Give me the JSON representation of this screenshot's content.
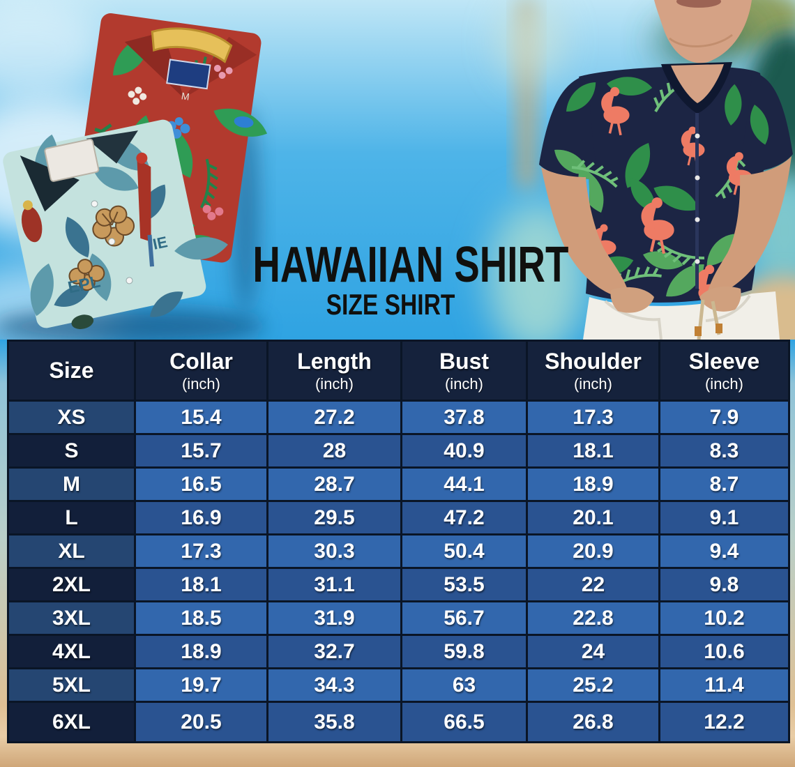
{
  "hero": {
    "title": "HAWAIIAN SHIRT",
    "subtitle": "SIZE SHIRT",
    "left_image": "two-folded-hawaiian-shirts",
    "right_image": "man-wearing-flamingo-hawaiian-shirt"
  },
  "chart_data": {
    "type": "table",
    "title": "HAWAIIAN SHIRT",
    "subtitle": "SIZE SHIRT",
    "columns": [
      {
        "label": "Size",
        "unit": ""
      },
      {
        "label": "Collar",
        "unit": "(inch)"
      },
      {
        "label": "Length",
        "unit": "(inch)"
      },
      {
        "label": "Bust",
        "unit": "(inch)"
      },
      {
        "label": "Shoulder",
        "unit": "(inch)"
      },
      {
        "label": "Sleeve",
        "unit": "(inch)"
      }
    ],
    "rows": [
      {
        "size": "XS",
        "values": [
          15.4,
          27.2,
          37.8,
          17.3,
          7.9
        ]
      },
      {
        "size": "S",
        "values": [
          15.7,
          28,
          40.9,
          18.1,
          8.3
        ]
      },
      {
        "size": "M",
        "values": [
          16.5,
          28.7,
          44.1,
          18.9,
          8.7
        ]
      },
      {
        "size": "L",
        "values": [
          16.9,
          29.5,
          47.2,
          20.1,
          9.1
        ]
      },
      {
        "size": "XL",
        "values": [
          17.3,
          30.3,
          50.4,
          20.9,
          9.4
        ]
      },
      {
        "size": "2XL",
        "values": [
          18.1,
          31.1,
          53.5,
          22,
          9.8
        ]
      },
      {
        "size": "3XL",
        "values": [
          18.5,
          31.9,
          56.7,
          22.8,
          10.2
        ]
      },
      {
        "size": "4XL",
        "values": [
          18.9,
          32.7,
          59.8,
          24,
          10.6
        ]
      },
      {
        "size": "5XL",
        "values": [
          19.7,
          34.3,
          63,
          25.2,
          11.4
        ]
      },
      {
        "size": "6XL",
        "values": [
          20.5,
          35.8,
          66.5,
          26.8,
          12.2
        ]
      }
    ]
  },
  "colors": {
    "header_bg": "#15223c",
    "row_odd_value_bg": "#3267ad",
    "row_even_value_bg": "#2a5391",
    "row_odd_size_bg": "#254672",
    "row_even_size_bg": "#121f3a",
    "table_border": "#0a1526",
    "table_text": "#ffffff",
    "title_text": "#10100e",
    "sky": "#2fa3e2",
    "sand": "#e6c9a0"
  }
}
